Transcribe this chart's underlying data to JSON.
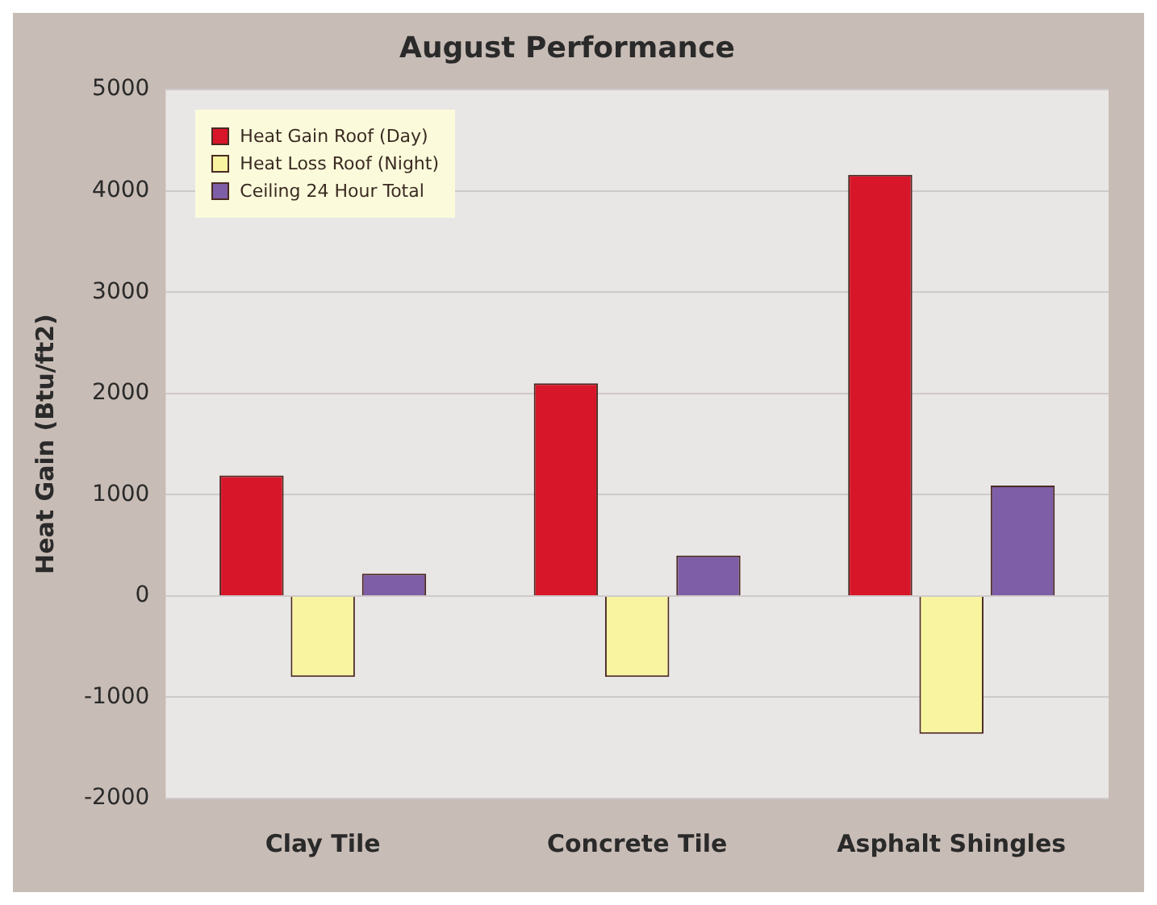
{
  "chart_data": {
    "type": "bar",
    "title": "August Performance",
    "ylabel": "Heat Gain (Btu/ft2)",
    "categories": [
      "Clay Tile",
      "Concrete Tile",
      "Asphalt Shingles"
    ],
    "series": [
      {
        "name": "Heat Gain Roof (Day)",
        "color": "#d8162a",
        "values": [
          1190,
          2100,
          4160
        ]
      },
      {
        "name": "Heat Loss Roof (Night)",
        "color": "#f8f4a0",
        "values": [
          -800,
          -800,
          -1360
        ]
      },
      {
        "name": "Ceiling 24 Hour Total",
        "color": "#7e5ea6",
        "values": [
          220,
          400,
          1090
        ]
      }
    ],
    "ylim": [
      -2000,
      5000
    ],
    "yticks": [
      -2000,
      -1000,
      0,
      1000,
      2000,
      3000,
      4000,
      5000
    ],
    "grid": "y",
    "legend": "top left"
  }
}
